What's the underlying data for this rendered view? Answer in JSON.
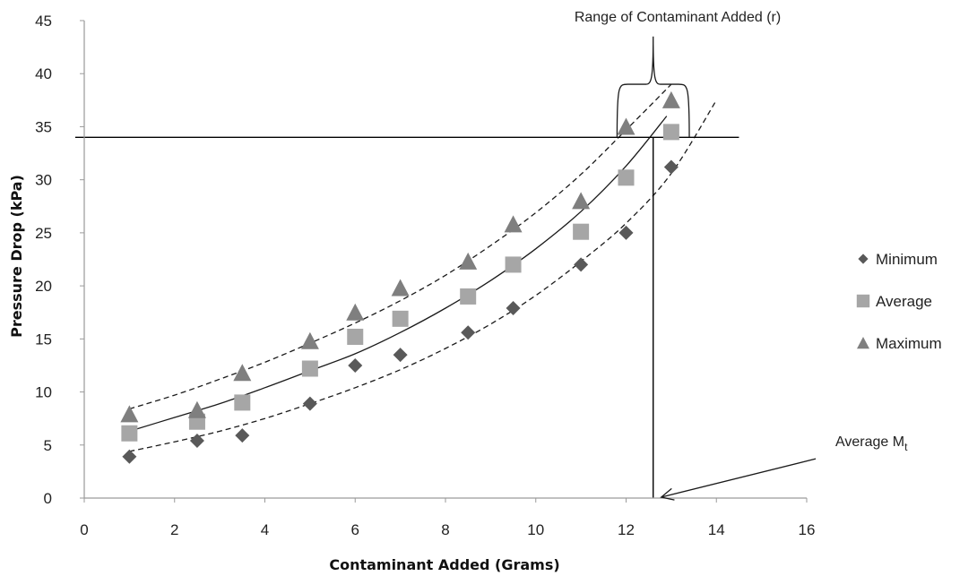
{
  "chart_data": {
    "type": "scatter",
    "title": "",
    "xlabel": "Contaminant Added (Grams)",
    "ylabel": "Pressure Drop (kPa)",
    "xlim": [
      0,
      16
    ],
    "ylim": [
      0,
      45
    ],
    "xticks": [
      0,
      2,
      4,
      6,
      8,
      10,
      12,
      14,
      16
    ],
    "yticks": [
      0,
      5,
      10,
      15,
      20,
      25,
      30,
      35,
      40,
      45
    ],
    "x_tick_labels": [
      "0",
      "2",
      "4",
      "6",
      "8",
      "10",
      "12",
      "14",
      "16"
    ],
    "y_tick_labels": [
      "0",
      "5",
      "10",
      "15",
      "20",
      "25",
      "30",
      "35",
      "40",
      "45"
    ],
    "grid": false,
    "legend_position": "right",
    "series": [
      {
        "name": "Minimum",
        "marker": "diamond",
        "color": "#595959",
        "x": [
          1,
          2.5,
          3.5,
          5,
          6,
          7,
          8.5,
          9.5,
          11,
          12,
          13
        ],
        "y": [
          3.9,
          5.4,
          5.9,
          8.9,
          12.5,
          13.5,
          15.6,
          17.9,
          22.0,
          25.0,
          31.2
        ]
      },
      {
        "name": "Average",
        "marker": "square",
        "color": "#a6a6a6",
        "x": [
          1,
          2.5,
          3.5,
          5,
          6,
          7,
          8.5,
          9.5,
          11,
          12,
          13
        ],
        "y": [
          6.1,
          7.2,
          9.0,
          12.2,
          15.2,
          16.9,
          19.0,
          22.0,
          25.1,
          30.2,
          34.5
        ]
      },
      {
        "name": "Maximum",
        "marker": "triangle",
        "color": "#7f7f7f",
        "x": [
          1,
          2.5,
          3.5,
          5,
          6,
          7,
          8.5,
          9.5,
          11,
          12,
          13
        ],
        "y": [
          7.9,
          8.3,
          11.8,
          14.8,
          17.5,
          19.8,
          22.3,
          25.8,
          28.0,
          35.0,
          37.5
        ]
      }
    ],
    "curves": [
      {
        "role": "average-fit",
        "style": "solid",
        "x": [
          1,
          2,
          3,
          4,
          5,
          6,
          7,
          8,
          9,
          10,
          11,
          12,
          12.9
        ],
        "y": [
          6.3,
          7.6,
          8.9,
          10.4,
          12.0,
          13.6,
          15.6,
          17.9,
          20.5,
          23.5,
          27.0,
          31.3,
          36.0
        ]
      },
      {
        "role": "upper-bound",
        "style": "dashed",
        "x": [
          1,
          2,
          3,
          4,
          5,
          6,
          7,
          8,
          9,
          10,
          11,
          12,
          13
        ],
        "y": [
          8.4,
          9.7,
          11.2,
          12.8,
          14.6,
          16.5,
          18.6,
          21.0,
          23.8,
          26.9,
          30.5,
          34.7,
          39.0
        ]
      },
      {
        "role": "lower-bound",
        "style": "dashed",
        "x": [
          1,
          2,
          3,
          4,
          5,
          6,
          7,
          8,
          9,
          10,
          11,
          12,
          13,
          14
        ],
        "y": [
          4.4,
          5.3,
          6.3,
          7.5,
          8.9,
          10.4,
          12.1,
          14.1,
          16.4,
          19.1,
          22.3,
          25.9,
          30.6,
          37.5
        ]
      }
    ],
    "reference_lines": {
      "horizontal_y": 34,
      "horizontal_x_range": [
        -0.2,
        14.5
      ],
      "vertical_x": 12.6,
      "vertical_y_range": [
        0,
        34
      ]
    },
    "bracket": {
      "x_from": 11.8,
      "x_to": 13.4,
      "y_base": 34,
      "y_top": 39,
      "y_peak": 43.5
    },
    "annotations": {
      "range_label": "Range of Contaminant Added  (r)",
      "mt_label_main": "Average M",
      "mt_label_sub": "t",
      "arrow_tail": {
        "x": 16.2,
        "y": 3.7
      },
      "arrow_head": {
        "x": 12.7,
        "y": 0
      }
    }
  }
}
